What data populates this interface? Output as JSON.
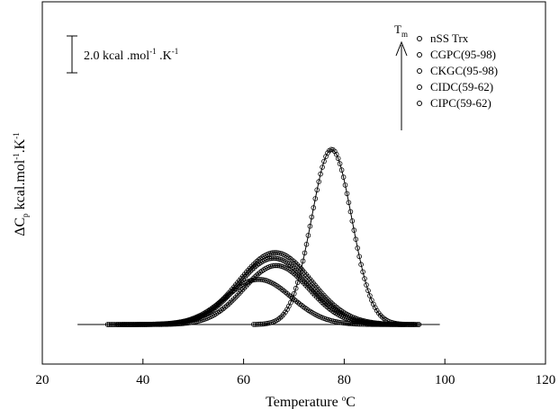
{
  "chart_data": {
    "type": "scatter",
    "xlabel": "Temperature",
    "xlabel_unit": "oC",
    "ylabel": "ΔC",
    "ylabel_sub": "p",
    "ylabel_unit": " kcal.mol",
    "ylabel_sup": "-1",
    "ylabel_unit2": ".K",
    "ylabel_sup2": "-1",
    "xlim": [
      20,
      120
    ],
    "xticks": [
      20,
      40,
      60,
      80,
      100,
      120
    ],
    "y_ticks_shown": false,
    "grid": false,
    "legend_position": "top-right",
    "tm_arrow_label": "T",
    "tm_arrow_sub": "m",
    "scale_bar": {
      "text": "2.0 kcal .mol",
      "sup1": "-1",
      "text2": " .K",
      "sup2": "-1",
      "value": 2.0
    },
    "baseline_y": 0,
    "baseline_x_range": [
      27,
      99
    ],
    "series": [
      {
        "name": "nSS Trx",
        "x_range": [
          62,
          92
        ],
        "tm": 77.5,
        "peak": 9.5,
        "width": 4.0,
        "shape": "peak"
      },
      {
        "name": "CGPC(95-98)",
        "x_range": [
          36,
          95
        ],
        "tm": 66.5,
        "peak": 3.2,
        "width": 6.5,
        "shape": "peak"
      },
      {
        "name": "CKGC(95-98)",
        "x_range": [
          35,
          95
        ],
        "tm": 66.3,
        "peak": 3.9,
        "width": 7.2,
        "shape": "peak"
      },
      {
        "name": "CIDC(59-62)",
        "x_range": [
          33,
          94
        ],
        "tm": 66.0,
        "peak": 3.6,
        "width": 7.0,
        "shape": "peak"
      },
      {
        "name": "CIPC(59-62)",
        "x_range": [
          33,
          92
        ],
        "tm": 63.0,
        "peak": 2.45,
        "width": 6.5,
        "shape": "peak"
      }
    ]
  }
}
